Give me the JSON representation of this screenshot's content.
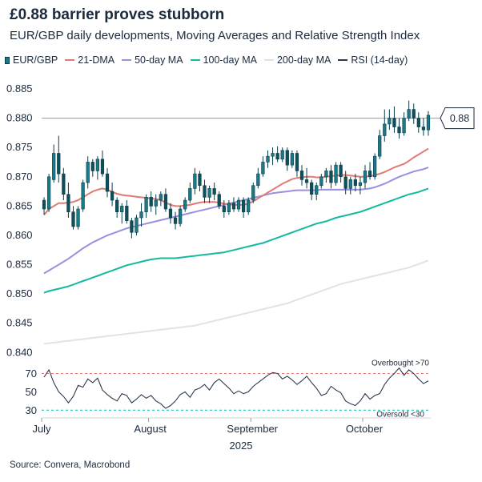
{
  "title": "£0.88 barrier proves stubborn",
  "subtitle": "EUR/GBP daily developments, Moving Averages and Relative Strength Index",
  "source": "Source: Convera, Macrobond",
  "colors": {
    "candle_body": "#1a7b86",
    "candle_outline": "#0b3d4d",
    "dma21": "#e07b73",
    "ma50": "#9b8fe0",
    "ma100": "#14b9a0",
    "ma200": "#e3e3e3",
    "rsi": "#2b3a4e",
    "overbought": "#e07b73",
    "oversold": "#14b9a0",
    "reference": "#9a9a9a"
  },
  "legend": [
    {
      "label": "EUR/GBP",
      "kind": "candle",
      "color": "#1a7b86"
    },
    {
      "label": "21-DMA",
      "kind": "line",
      "color": "#e07b73"
    },
    {
      "label": "50-day MA",
      "kind": "line",
      "color": "#9b8fe0"
    },
    {
      "label": "100-day MA",
      "kind": "line",
      "color": "#14b9a0"
    },
    {
      "label": "200-day MA",
      "kind": "line",
      "color": "#e3e3e3"
    },
    {
      "label": "RSI (14-day)",
      "kind": "line",
      "color": "#2b3a4e"
    }
  ],
  "chart_data": [
    {
      "type": "candlestick",
      "title": "",
      "ylim": [
        0.8395,
        0.8865
      ],
      "yticks": [
        0.84,
        0.845,
        0.85,
        0.855,
        0.86,
        0.865,
        0.87,
        0.875,
        0.88,
        0.885
      ],
      "ytick_labels": [
        "0.840",
        "0.845",
        "0.850",
        "0.855",
        "0.860",
        "0.865",
        "0.870",
        "0.875",
        "0.880",
        "0.885"
      ],
      "reference_line": {
        "value": 0.88,
        "label": "0.88"
      },
      "candles_ohlc": [
        [
          0.866,
          0.8665,
          0.8635,
          0.8645
        ],
        [
          0.8645,
          0.8705,
          0.864,
          0.87
        ],
        [
          0.8695,
          0.8755,
          0.869,
          0.874
        ],
        [
          0.874,
          0.877,
          0.869,
          0.8705
        ],
        [
          0.8705,
          0.8715,
          0.866,
          0.867
        ],
        [
          0.867,
          0.869,
          0.863,
          0.864
        ],
        [
          0.864,
          0.865,
          0.861,
          0.8615
        ],
        [
          0.8615,
          0.865,
          0.861,
          0.8645
        ],
        [
          0.8645,
          0.8695,
          0.864,
          0.869
        ],
        [
          0.869,
          0.8735,
          0.868,
          0.8725
        ],
        [
          0.8725,
          0.873,
          0.87,
          0.871
        ],
        [
          0.871,
          0.8735,
          0.8695,
          0.873
        ],
        [
          0.873,
          0.8745,
          0.87,
          0.8705
        ],
        [
          0.8705,
          0.8715,
          0.8665,
          0.8675
        ],
        [
          0.8675,
          0.869,
          0.865,
          0.866
        ],
        [
          0.866,
          0.8665,
          0.863,
          0.864
        ],
        [
          0.864,
          0.8655,
          0.862,
          0.865
        ],
        [
          0.865,
          0.866,
          0.862,
          0.8625
        ],
        [
          0.8625,
          0.863,
          0.8595,
          0.8605
        ],
        [
          0.8605,
          0.8635,
          0.86,
          0.863
        ],
        [
          0.863,
          0.8655,
          0.8615,
          0.864
        ],
        [
          0.864,
          0.867,
          0.863,
          0.8665
        ],
        [
          0.8665,
          0.8675,
          0.864,
          0.865
        ],
        [
          0.865,
          0.867,
          0.8635,
          0.866
        ],
        [
          0.866,
          0.8675,
          0.865,
          0.867
        ],
        [
          0.867,
          0.868,
          0.864,
          0.8645
        ],
        [
          0.8645,
          0.8655,
          0.862,
          0.863
        ],
        [
          0.863,
          0.864,
          0.861,
          0.862
        ],
        [
          0.862,
          0.865,
          0.8615,
          0.8645
        ],
        [
          0.8645,
          0.8665,
          0.864,
          0.866
        ],
        [
          0.866,
          0.869,
          0.8655,
          0.868
        ],
        [
          0.868,
          0.8715,
          0.867,
          0.8705
        ],
        [
          0.8705,
          0.871,
          0.8675,
          0.8685
        ],
        [
          0.8685,
          0.8695,
          0.8655,
          0.8665
        ],
        [
          0.8665,
          0.8685,
          0.8655,
          0.868
        ],
        [
          0.868,
          0.869,
          0.866,
          0.867
        ],
        [
          0.867,
          0.8675,
          0.8645,
          0.865
        ],
        [
          0.865,
          0.866,
          0.863,
          0.864
        ],
        [
          0.864,
          0.866,
          0.8635,
          0.8655
        ],
        [
          0.8655,
          0.8665,
          0.864,
          0.8645
        ],
        [
          0.8645,
          0.8665,
          0.864,
          0.866
        ],
        [
          0.866,
          0.8665,
          0.863,
          0.864
        ],
        [
          0.864,
          0.8665,
          0.8635,
          0.866
        ],
        [
          0.866,
          0.869,
          0.8655,
          0.8685
        ],
        [
          0.8685,
          0.8715,
          0.868,
          0.8705
        ],
        [
          0.8705,
          0.8735,
          0.87,
          0.8725
        ],
        [
          0.8725,
          0.8745,
          0.8715,
          0.8735
        ],
        [
          0.8735,
          0.875,
          0.872,
          0.874
        ],
        [
          0.874,
          0.8752,
          0.8725,
          0.873
        ],
        [
          0.873,
          0.875,
          0.8725,
          0.8745
        ],
        [
          0.8745,
          0.875,
          0.871,
          0.872
        ],
        [
          0.872,
          0.8745,
          0.8715,
          0.874
        ],
        [
          0.874,
          0.8745,
          0.87,
          0.871
        ],
        [
          0.871,
          0.872,
          0.8685,
          0.8695
        ],
        [
          0.8695,
          0.8715,
          0.868,
          0.869
        ],
        [
          0.869,
          0.8695,
          0.866,
          0.867
        ],
        [
          0.867,
          0.869,
          0.866,
          0.8685
        ],
        [
          0.8685,
          0.8705,
          0.868,
          0.87
        ],
        [
          0.87,
          0.8715,
          0.869,
          0.871
        ],
        [
          0.871,
          0.872,
          0.868,
          0.869
        ],
        [
          0.869,
          0.8725,
          0.8685,
          0.872
        ],
        [
          0.872,
          0.8725,
          0.869,
          0.87
        ],
        [
          0.87,
          0.871,
          0.867,
          0.868
        ],
        [
          0.868,
          0.87,
          0.867,
          0.8695
        ],
        [
          0.8695,
          0.8705,
          0.8675,
          0.8685
        ],
        [
          0.8685,
          0.87,
          0.867,
          0.869
        ],
        [
          0.869,
          0.872,
          0.868,
          0.871
        ],
        [
          0.871,
          0.8725,
          0.8695,
          0.87
        ],
        [
          0.87,
          0.874,
          0.8695,
          0.8735
        ],
        [
          0.8735,
          0.878,
          0.873,
          0.877
        ],
        [
          0.877,
          0.8815,
          0.876,
          0.879
        ],
        [
          0.879,
          0.8815,
          0.878,
          0.88
        ],
        [
          0.88,
          0.882,
          0.8775,
          0.8785
        ],
        [
          0.8785,
          0.88,
          0.8765,
          0.8775
        ],
        [
          0.8775,
          0.881,
          0.877,
          0.88
        ],
        [
          0.88,
          0.883,
          0.8795,
          0.8815
        ],
        [
          0.8815,
          0.8825,
          0.879,
          0.88
        ],
        [
          0.88,
          0.881,
          0.8775,
          0.8785
        ],
        [
          0.8785,
          0.88,
          0.877,
          0.878
        ],
        [
          0.878,
          0.8812,
          0.877,
          0.8805
        ]
      ],
      "series": [
        {
          "name": "21-DMA",
          "values": [
            0.8635,
            0.8645,
            0.865,
            0.8655,
            0.8655,
            0.8656,
            0.8657,
            0.866,
            0.8665,
            0.867,
            0.8675,
            0.8678,
            0.868,
            0.8678,
            0.8674,
            0.8671,
            0.8669,
            0.8668,
            0.8667,
            0.8666,
            0.8665,
            0.8664,
            0.8663,
            0.8662,
            0.866,
            0.8656,
            0.8652,
            0.865,
            0.865,
            0.8651,
            0.8652,
            0.8654,
            0.8656,
            0.8657,
            0.8657,
            0.8657,
            0.8656,
            0.8654,
            0.8653,
            0.8652,
            0.8652,
            0.8652,
            0.8654,
            0.8658,
            0.8663,
            0.8668,
            0.8673,
            0.8678,
            0.8683,
            0.8688,
            0.8692,
            0.8696,
            0.8698,
            0.8699,
            0.87,
            0.87,
            0.8699,
            0.8699,
            0.87,
            0.8701,
            0.8702,
            0.8703,
            0.8703,
            0.8702,
            0.8701,
            0.87,
            0.87,
            0.8701,
            0.8703,
            0.8705,
            0.8708,
            0.8712,
            0.8716,
            0.8719,
            0.8722,
            0.8727,
            0.8733,
            0.8738,
            0.8743,
            0.8748
          ]
        },
        {
          "name": "50-day MA",
          "values": [
            0.8535,
            0.854,
            0.8545,
            0.855,
            0.8555,
            0.856,
            0.8566,
            0.8572,
            0.8578,
            0.8583,
            0.8588,
            0.8592,
            0.8596,
            0.86,
            0.8603,
            0.8606,
            0.8609,
            0.8612,
            0.8614,
            0.8616,
            0.8618,
            0.862,
            0.8622,
            0.8624,
            0.8626,
            0.8628,
            0.863,
            0.8632,
            0.8634,
            0.8636,
            0.8638,
            0.864,
            0.8642,
            0.8644,
            0.8646,
            0.8648,
            0.865,
            0.8652,
            0.8654,
            0.8656,
            0.8658,
            0.866,
            0.8662,
            0.8664,
            0.8666,
            0.8668,
            0.867,
            0.8672,
            0.8673,
            0.8674,
            0.8675,
            0.8676,
            0.8677,
            0.8677,
            0.8677,
            0.8677,
            0.8677,
            0.8678,
            0.8678,
            0.8678,
            0.8678,
            0.8678,
            0.8678,
            0.8678,
            0.8678,
            0.8678,
            0.8679,
            0.868,
            0.8682,
            0.8685,
            0.8688,
            0.8692,
            0.8696,
            0.87,
            0.8703,
            0.8706,
            0.8709,
            0.8711,
            0.8713,
            0.8716
          ]
        },
        {
          "name": "100-day MA",
          "values": [
            0.8502,
            0.8505,
            0.8507,
            0.8509,
            0.8511,
            0.8513,
            0.8516,
            0.8519,
            0.8522,
            0.8525,
            0.8528,
            0.8531,
            0.8534,
            0.8537,
            0.854,
            0.8543,
            0.8546,
            0.8549,
            0.8551,
            0.8553,
            0.8555,
            0.8557,
            0.8559,
            0.856,
            0.8561,
            0.8561,
            0.8561,
            0.8561,
            0.8562,
            0.8563,
            0.8564,
            0.8565,
            0.8566,
            0.8567,
            0.8568,
            0.8569,
            0.857,
            0.8571,
            0.8573,
            0.8575,
            0.8577,
            0.8579,
            0.8581,
            0.8583,
            0.8585,
            0.8587,
            0.859,
            0.8593,
            0.8596,
            0.8599,
            0.8602,
            0.8605,
            0.8608,
            0.8611,
            0.8614,
            0.8617,
            0.862,
            0.8622,
            0.8624,
            0.8627,
            0.863,
            0.8632,
            0.8634,
            0.8636,
            0.8638,
            0.864,
            0.8643,
            0.8646,
            0.8649,
            0.8652,
            0.8655,
            0.8658,
            0.8661,
            0.8664,
            0.8667,
            0.867,
            0.8672,
            0.8674,
            0.8677,
            0.868
          ]
        },
        {
          "name": "200-day MA",
          "values": [
            0.8415,
            0.8416,
            0.8417,
            0.8418,
            0.8419,
            0.842,
            0.8421,
            0.8422,
            0.8423,
            0.8424,
            0.8425,
            0.8426,
            0.8427,
            0.8428,
            0.8429,
            0.843,
            0.8431,
            0.8432,
            0.8433,
            0.8434,
            0.8435,
            0.8436,
            0.8437,
            0.8438,
            0.8439,
            0.844,
            0.8441,
            0.8442,
            0.8443,
            0.8444,
            0.8445,
            0.8446,
            0.8448,
            0.845,
            0.8452,
            0.8454,
            0.8456,
            0.8458,
            0.846,
            0.8462,
            0.8464,
            0.8466,
            0.8468,
            0.847,
            0.8472,
            0.8474,
            0.8476,
            0.8478,
            0.848,
            0.8482,
            0.8484,
            0.8487,
            0.849,
            0.8493,
            0.8496,
            0.8499,
            0.8502,
            0.8505,
            0.8508,
            0.8511,
            0.8514,
            0.8517,
            0.8519,
            0.8521,
            0.8523,
            0.8525,
            0.8527,
            0.8529,
            0.8531,
            0.8533,
            0.8535,
            0.8537,
            0.8539,
            0.8541,
            0.8543,
            0.8545,
            0.8548,
            0.8551,
            0.8554,
            0.8557
          ]
        }
      ]
    },
    {
      "type": "line",
      "title": "",
      "ylim": [
        25,
        80
      ],
      "yticks": [
        30,
        50,
        70
      ],
      "ytick_labels": [
        "30",
        "50",
        "70"
      ],
      "overbought": {
        "value": 70,
        "label": "Overbought >70"
      },
      "oversold": {
        "value": 30,
        "label": "Oversold <30"
      },
      "x_labels": [
        "July",
        "August",
        "September",
        "October"
      ],
      "x_label_positions": [
        0,
        22,
        43,
        66
      ],
      "x_year": "2025",
      "series": [
        {
          "name": "RSI (14-day)",
          "values": [
            66,
            74,
            60,
            50,
            45,
            38,
            45,
            57,
            55,
            64,
            60,
            65,
            52,
            47,
            43,
            40,
            48,
            46,
            38,
            42,
            47,
            43,
            46,
            40,
            37,
            32,
            35,
            40,
            47,
            50,
            44,
            52,
            54,
            58,
            52,
            60,
            64,
            59,
            54,
            48,
            51,
            48,
            50,
            56,
            60,
            64,
            68,
            71,
            70,
            64,
            67,
            63,
            58,
            62,
            67,
            60,
            54,
            46,
            48,
            56,
            52,
            49,
            40,
            37,
            35,
            40,
            48,
            42,
            46,
            48,
            58,
            65,
            70,
            76,
            68,
            74,
            70,
            64,
            59,
            62
          ]
        }
      ]
    }
  ]
}
